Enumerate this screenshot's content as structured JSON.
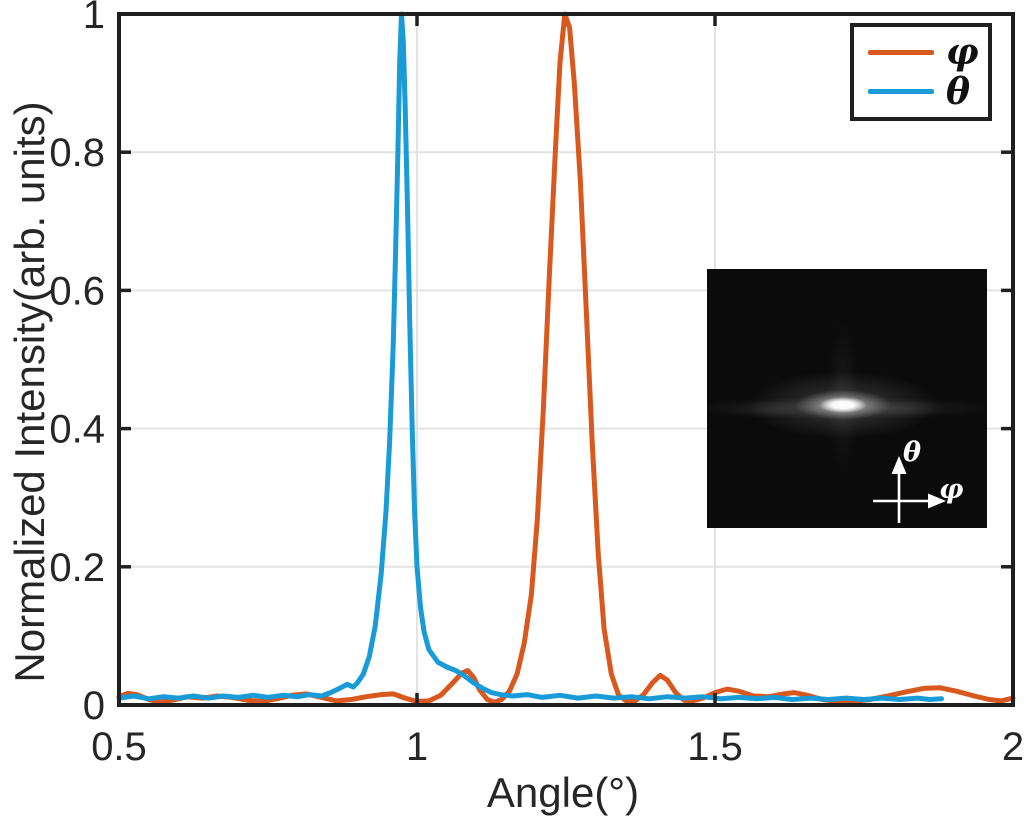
{
  "figure": {
    "background": "#ffffff",
    "axis_color": "#1f1f1f",
    "grid_color": "#e3e3e3",
    "tick_label_color": "#262626"
  },
  "chart_data": {
    "type": "line",
    "title": "",
    "xlabel": "Angle(°)",
    "ylabel": "Normalized Intensity(arb. units)",
    "xlim": [
      0.5,
      2
    ],
    "ylim": [
      0,
      1
    ],
    "x_ticks": [
      0.5,
      1,
      1.5,
      2
    ],
    "x_tick_labels": [
      "0.5",
      "1",
      "1.5",
      "2"
    ],
    "y_ticks": [
      0,
      0.2,
      0.4,
      0.6,
      0.8,
      1
    ],
    "y_tick_labels": [
      "0",
      "0.2",
      "0.4",
      "0.6",
      "0.8",
      "1"
    ],
    "grid": true,
    "legend_position": "top-right",
    "series": [
      {
        "name": "φ",
        "color": "#d8581e",
        "peak_angle_deg": 1.248,
        "peak_value": 1.0,
        "points": [
          [
            0.5,
            0.012
          ],
          [
            0.515,
            0.017
          ],
          [
            0.53,
            0.015
          ],
          [
            0.55,
            0.008
          ],
          [
            0.57,
            0.004
          ],
          [
            0.59,
            0.007
          ],
          [
            0.615,
            0.012
          ],
          [
            0.64,
            0.01
          ],
          [
            0.665,
            0.013
          ],
          [
            0.69,
            0.011
          ],
          [
            0.715,
            0.007
          ],
          [
            0.74,
            0.005
          ],
          [
            0.765,
            0.009
          ],
          [
            0.79,
            0.014
          ],
          [
            0.815,
            0.016
          ],
          [
            0.84,
            0.011
          ],
          [
            0.865,
            0.006
          ],
          [
            0.89,
            0.008
          ],
          [
            0.915,
            0.012
          ],
          [
            0.94,
            0.015
          ],
          [
            0.96,
            0.016
          ],
          [
            0.98,
            0.01
          ],
          [
            1.0,
            0.005
          ],
          [
            1.02,
            0.006
          ],
          [
            1.04,
            0.014
          ],
          [
            1.06,
            0.032
          ],
          [
            1.075,
            0.046
          ],
          [
            1.085,
            0.05
          ],
          [
            1.095,
            0.04
          ],
          [
            1.105,
            0.022
          ],
          [
            1.118,
            0.008
          ],
          [
            1.13,
            0.004
          ],
          [
            1.142,
            0.008
          ],
          [
            1.155,
            0.02
          ],
          [
            1.168,
            0.045
          ],
          [
            1.18,
            0.09
          ],
          [
            1.192,
            0.16
          ],
          [
            1.202,
            0.27
          ],
          [
            1.212,
            0.43
          ],
          [
            1.222,
            0.62
          ],
          [
            1.232,
            0.8
          ],
          [
            1.24,
            0.93
          ],
          [
            1.248,
            1.0
          ],
          [
            1.256,
            0.98
          ],
          [
            1.264,
            0.9
          ],
          [
            1.274,
            0.76
          ],
          [
            1.284,
            0.57
          ],
          [
            1.294,
            0.38
          ],
          [
            1.304,
            0.22
          ],
          [
            1.314,
            0.11
          ],
          [
            1.326,
            0.045
          ],
          [
            1.338,
            0.015
          ],
          [
            1.352,
            0.005
          ],
          [
            1.366,
            0.006
          ],
          [
            1.38,
            0.015
          ],
          [
            1.395,
            0.032
          ],
          [
            1.408,
            0.043
          ],
          [
            1.42,
            0.036
          ],
          [
            1.434,
            0.018
          ],
          [
            1.448,
            0.007
          ],
          [
            1.462,
            0.006
          ],
          [
            1.48,
            0.01
          ],
          [
            1.5,
            0.018
          ],
          [
            1.52,
            0.023
          ],
          [
            1.54,
            0.02
          ],
          [
            1.565,
            0.013
          ],
          [
            1.59,
            0.012
          ],
          [
            1.615,
            0.016
          ],
          [
            1.633,
            0.018
          ],
          [
            1.655,
            0.014
          ],
          [
            1.68,
            0.008
          ],
          [
            1.705,
            0.005
          ],
          [
            1.73,
            0.005
          ],
          [
            1.76,
            0.008
          ],
          [
            1.79,
            0.013
          ],
          [
            1.82,
            0.019
          ],
          [
            1.85,
            0.024
          ],
          [
            1.877,
            0.025
          ],
          [
            1.905,
            0.02
          ],
          [
            1.935,
            0.013
          ],
          [
            1.96,
            0.008
          ],
          [
            1.98,
            0.006
          ],
          [
            2.0,
            0.01
          ]
        ]
      },
      {
        "name": "θ",
        "color": "#199bd7",
        "peak_angle_deg": 0.974,
        "peak_value": 1.0,
        "points": [
          [
            0.5,
            0.01
          ],
          [
            0.525,
            0.013
          ],
          [
            0.55,
            0.009
          ],
          [
            0.575,
            0.012
          ],
          [
            0.6,
            0.01
          ],
          [
            0.625,
            0.013
          ],
          [
            0.65,
            0.01
          ],
          [
            0.675,
            0.013
          ],
          [
            0.7,
            0.011
          ],
          [
            0.725,
            0.014
          ],
          [
            0.75,
            0.011
          ],
          [
            0.775,
            0.014
          ],
          [
            0.8,
            0.012
          ],
          [
            0.82,
            0.015
          ],
          [
            0.84,
            0.013
          ],
          [
            0.855,
            0.018
          ],
          [
            0.87,
            0.024
          ],
          [
            0.883,
            0.03
          ],
          [
            0.893,
            0.026
          ],
          [
            0.9,
            0.032
          ],
          [
            0.91,
            0.045
          ],
          [
            0.92,
            0.07
          ],
          [
            0.93,
            0.115
          ],
          [
            0.94,
            0.19
          ],
          [
            0.948,
            0.28
          ],
          [
            0.954,
            0.38
          ],
          [
            0.96,
            0.52
          ],
          [
            0.964,
            0.65
          ],
          [
            0.968,
            0.8
          ],
          [
            0.971,
            0.93
          ],
          [
            0.974,
            1.0
          ],
          [
            0.977,
            0.96
          ],
          [
            0.98,
            0.87
          ],
          [
            0.984,
            0.72
          ],
          [
            0.988,
            0.55
          ],
          [
            0.992,
            0.4
          ],
          [
            0.996,
            0.28
          ],
          [
            1.0,
            0.2
          ],
          [
            1.006,
            0.14
          ],
          [
            1.012,
            0.105
          ],
          [
            1.02,
            0.08
          ],
          [
            1.035,
            0.062
          ],
          [
            1.05,
            0.055
          ],
          [
            1.065,
            0.05
          ],
          [
            1.08,
            0.042
          ],
          [
            1.095,
            0.032
          ],
          [
            1.11,
            0.024
          ],
          [
            1.125,
            0.018
          ],
          [
            1.14,
            0.015
          ],
          [
            1.16,
            0.013
          ],
          [
            1.185,
            0.015
          ],
          [
            1.21,
            0.011
          ],
          [
            1.24,
            0.014
          ],
          [
            1.27,
            0.01
          ],
          [
            1.3,
            0.013
          ],
          [
            1.33,
            0.01
          ],
          [
            1.36,
            0.012
          ],
          [
            1.39,
            0.009
          ],
          [
            1.42,
            0.012
          ],
          [
            1.45,
            0.01
          ],
          [
            1.48,
            0.012
          ],
          [
            1.51,
            0.009
          ],
          [
            1.54,
            0.011
          ],
          [
            1.57,
            0.009
          ],
          [
            1.6,
            0.011
          ],
          [
            1.63,
            0.008
          ],
          [
            1.66,
            0.01
          ],
          [
            1.69,
            0.008
          ],
          [
            1.72,
            0.01
          ],
          [
            1.75,
            0.008
          ],
          [
            1.78,
            0.01
          ],
          [
            1.81,
            0.008
          ],
          [
            1.84,
            0.01
          ],
          [
            1.86,
            0.008
          ],
          [
            1.88,
            0.009
          ]
        ]
      }
    ]
  },
  "inset": {
    "description": "far-field beam spot image",
    "theta_label": "θ",
    "phi_label": "φ"
  }
}
